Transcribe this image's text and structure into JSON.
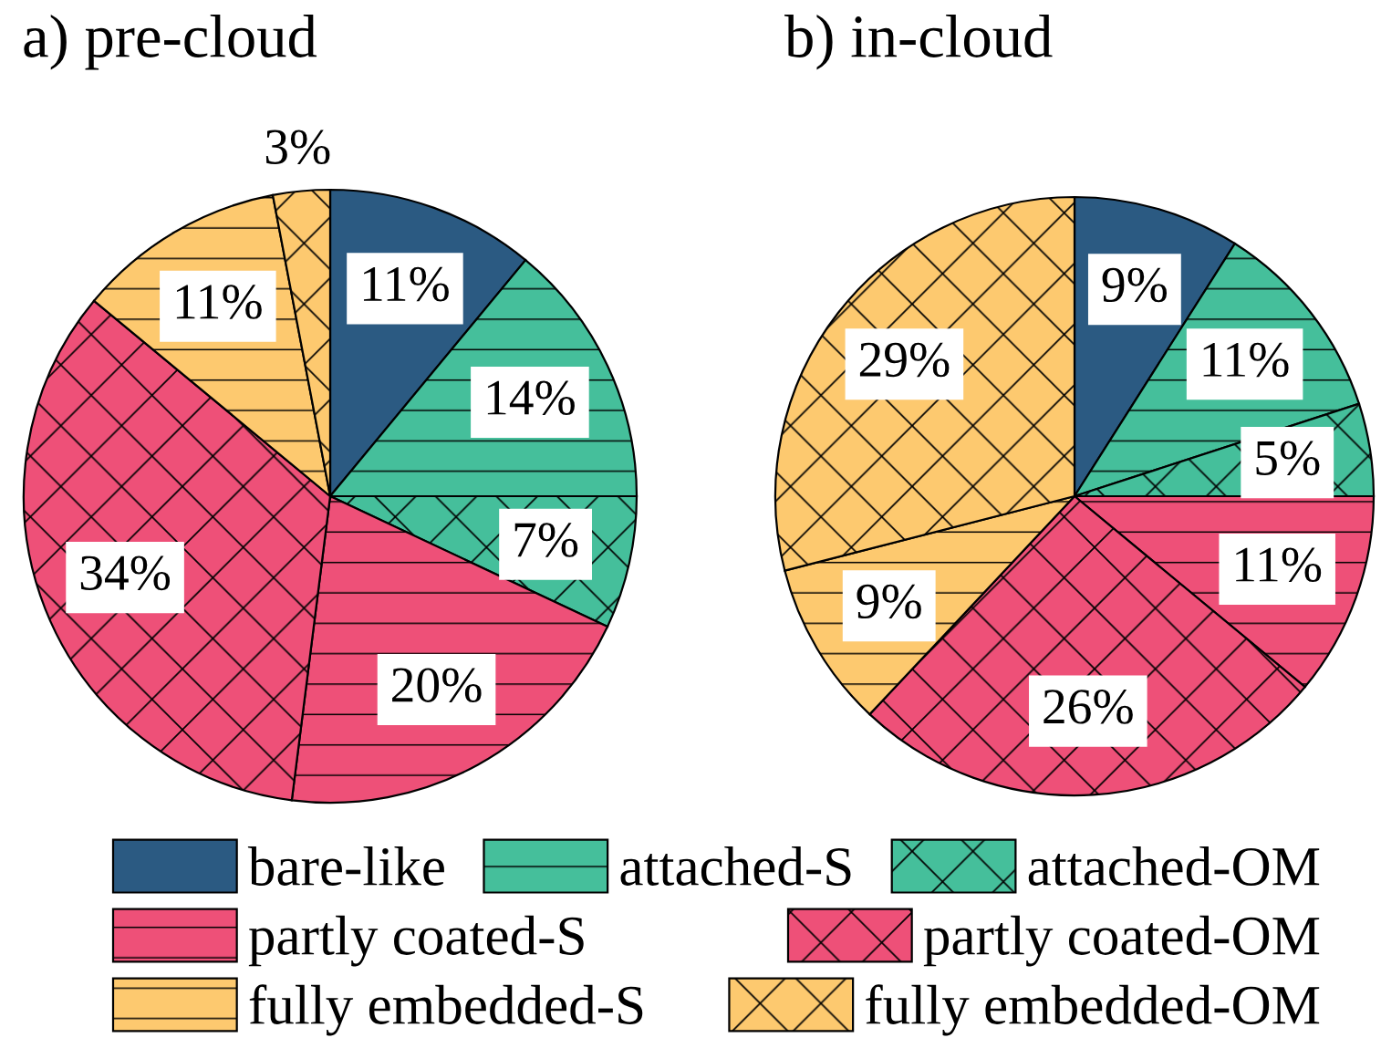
{
  "chart_data": [
    {
      "type": "pie",
      "title": "a) pre-cloud",
      "categories": [
        "bare-like",
        "attached-S",
        "attached-OM",
        "partly coated-S",
        "partly coated-OM",
        "fully embedded-S",
        "fully embedded-OM"
      ],
      "values": [
        11,
        14,
        7,
        20,
        34,
        11,
        3
      ],
      "value_labels": [
        "11%",
        "14%",
        "7%",
        "20%",
        "34%",
        "11%",
        "3%"
      ],
      "colors": [
        "#2b5a82",
        "#45bf9b",
        "#45bf9b",
        "#ee5078",
        "#ee5078",
        "#fdc96f",
        "#fdc96f"
      ],
      "legend": "bottom"
    },
    {
      "type": "pie",
      "title": "b) in-cloud",
      "values": [
        9,
        11,
        5,
        11,
        26,
        9,
        29
      ],
      "value_labels": [
        "9%",
        "11%",
        "5%",
        "11%",
        "26%",
        "9%",
        "29%"
      ],
      "colors": [
        "#2b5a82",
        "#45bf9b",
        "#45bf9b",
        "#ee5078",
        "#ee5078",
        "#fdc96f",
        "#fdc96f"
      ]
    }
  ]
}
